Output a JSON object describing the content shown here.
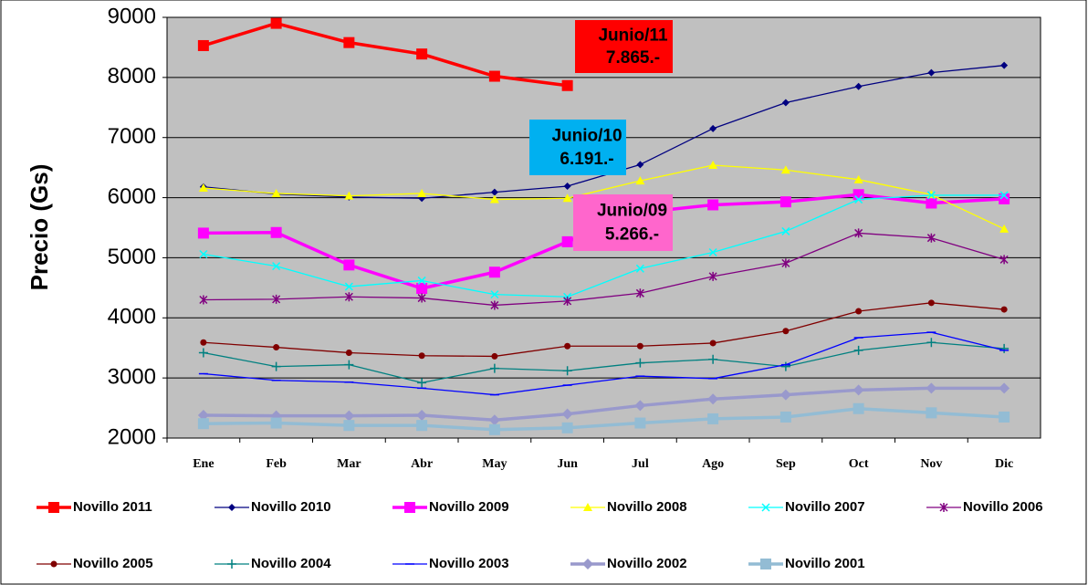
{
  "chart_data": {
    "type": "line",
    "ylabel": "Precio (Gs)",
    "categories": [
      "Ene",
      "Feb",
      "Mar",
      "Abr",
      "May",
      "Jun",
      "Jul",
      "Ago",
      "Sep",
      "Oct",
      "Nov",
      "Dic"
    ],
    "ylim": [
      2000,
      9000
    ],
    "yticks": [
      2000,
      3000,
      4000,
      5000,
      6000,
      7000,
      8000,
      9000
    ],
    "grid": true,
    "legend": "bottom",
    "series": [
      {
        "name": "Novillo 2011",
        "color": "#ff0000",
        "marker": "square",
        "values": [
          8530,
          8900,
          8580,
          8390,
          8020,
          7865,
          null,
          null,
          null,
          null,
          null,
          null
        ]
      },
      {
        "name": "Novillo 2010",
        "color": "#000080",
        "marker": "diamond",
        "values": [
          6180,
          6060,
          6010,
          5990,
          6090,
          6191,
          6550,
          7150,
          7580,
          7850,
          8080,
          8200
        ]
      },
      {
        "name": "Novillo 2009",
        "color": "#ff00ff",
        "marker": "square",
        "values": [
          5410,
          5420,
          4880,
          4490,
          4760,
          5266,
          5750,
          5880,
          5930,
          6050,
          5910,
          5980
        ]
      },
      {
        "name": "Novillo 2008",
        "color": "#ffff00",
        "marker": "triangle",
        "values": [
          6160,
          6070,
          6030,
          6070,
          5970,
          5990,
          6280,
          6540,
          6460,
          6300,
          6050,
          5480
        ]
      },
      {
        "name": "Novillo 2007",
        "color": "#00ffff",
        "marker": "x",
        "values": [
          5060,
          4860,
          4520,
          4620,
          4390,
          4350,
          4820,
          5090,
          5440,
          5970,
          6040,
          6040
        ]
      },
      {
        "name": "Novillo 2006",
        "color": "#800080",
        "marker": "star",
        "values": [
          4300,
          4310,
          4350,
          4330,
          4210,
          4280,
          4410,
          4690,
          4910,
          5410,
          5330,
          4970
        ]
      },
      {
        "name": "Novillo 2005",
        "color": "#800000",
        "marker": "circle",
        "values": [
          3590,
          3510,
          3420,
          3370,
          3360,
          3530,
          3530,
          3580,
          3780,
          4110,
          4250,
          4140
        ]
      },
      {
        "name": "Novillo 2004",
        "color": "#008080",
        "marker": "plus",
        "values": [
          3420,
          3190,
          3220,
          2920,
          3160,
          3120,
          3250,
          3310,
          3190,
          3460,
          3590,
          3490
        ]
      },
      {
        "name": "Novillo 2003",
        "color": "#0000ff",
        "marker": "dash",
        "values": [
          3070,
          2960,
          2930,
          2830,
          2720,
          2880,
          3030,
          2990,
          3220,
          3670,
          3760,
          3460
        ]
      },
      {
        "name": "Novillo 2002",
        "color": "#9999cc",
        "marker": "bigdiamond",
        "values": [
          2380,
          2370,
          2370,
          2380,
          2300,
          2400,
          2540,
          2650,
          2720,
          2800,
          2830,
          2830
        ]
      },
      {
        "name": "Novillo 2001",
        "color": "#93bcd4",
        "marker": "bigsquare",
        "values": [
          2240,
          2250,
          2210,
          2210,
          2140,
          2170,
          2250,
          2320,
          2350,
          2490,
          2420,
          2350
        ]
      }
    ],
    "annotations": [
      {
        "lines": [
          "Junio/11",
          "7.865.-"
        ],
        "color": "#ff0000"
      },
      {
        "lines": [
          "Junio/10",
          "6.191.-"
        ],
        "color": "#00b0f0"
      },
      {
        "lines": [
          "Junio/09",
          "5.266.-"
        ],
        "color": "#ff66cc"
      }
    ]
  }
}
